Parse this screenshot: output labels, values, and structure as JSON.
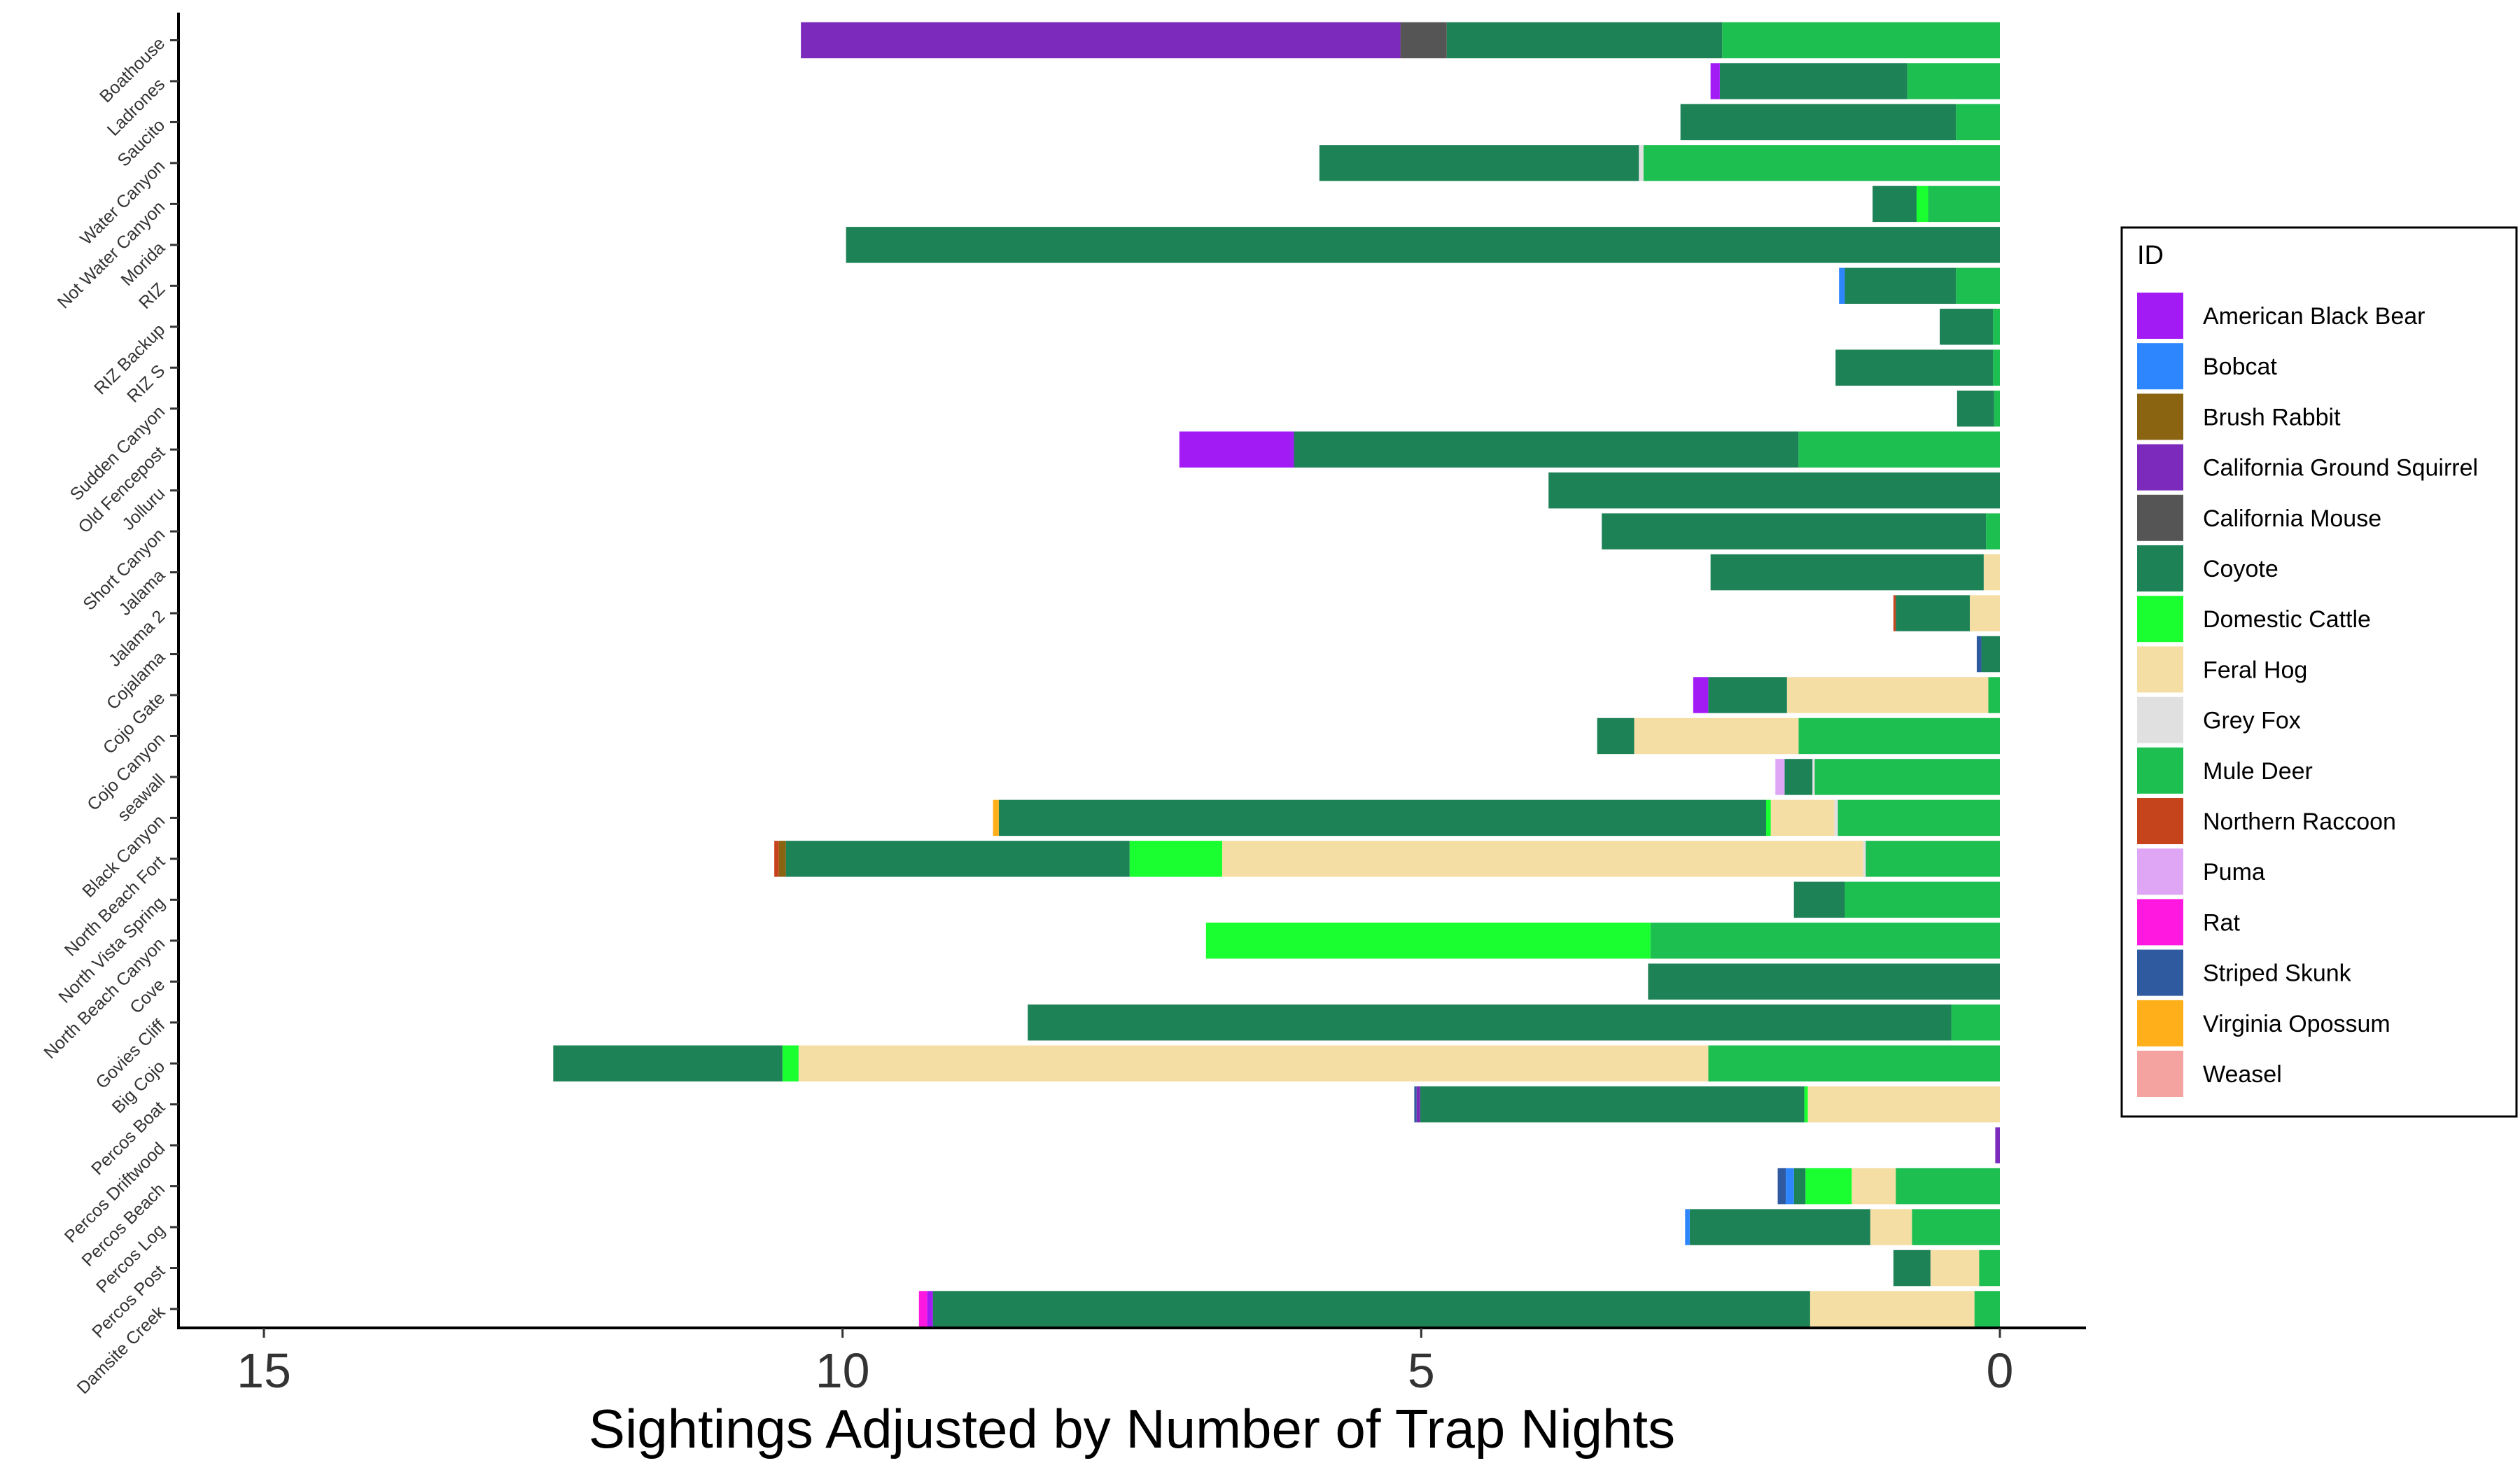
{
  "chart_data": {
    "type": "bar",
    "orientation": "horizontal-stacked",
    "x_reversed": true,
    "xlabel": "Sightings Adjusted by Number of Trap Nights",
    "ylabel": "",
    "xlim": [
      0,
      16.4
    ],
    "xticks": [
      15,
      10,
      5,
      0
    ],
    "grid": false,
    "legend_position": "right",
    "legend_title": "ID",
    "categories": [
      "Boathouse",
      "Ladrones",
      "Saucito",
      "Water Canyon",
      "Not Water Canyon",
      "Morida",
      "RIZ",
      "RIZ Backup",
      "RIZ S",
      "Sudden Canyon",
      "Old Fencepost",
      "Jolluru",
      "Short Canyon",
      "Jalama",
      "Jalama 2",
      "Cojalama",
      "Cojo Gate",
      "Cojo Canyon",
      "seawall",
      "Black Canyon",
      "North Beach Fort",
      "North Vista Spring",
      "North Beach Canyon",
      "Cove",
      "Govies Cliff",
      "Big Cojo",
      "Percos Boat",
      "Percos Driftwood",
      "Percos Beach",
      "Percos Log",
      "Percos Post",
      "Damsite Creek"
    ],
    "series": [
      {
        "name": "Mule Deer",
        "color": "#1DBF50",
        "values": [
          2.4,
          0.8,
          0.38,
          3.08,
          0.62,
          0,
          0.38,
          0.06,
          0.06,
          0.05,
          1.74,
          0,
          0.12,
          0,
          0,
          0,
          0.1,
          1.74,
          1.6,
          1.4,
          1.16,
          1.34,
          3.02,
          0,
          0.42,
          2.52,
          0,
          0,
          0.9,
          0.76,
          0.18,
          0.22
        ]
      },
      {
        "name": "Grey Fox",
        "color": "#E0E0E0",
        "values": [
          0,
          0,
          0,
          0.04,
          0,
          0,
          0,
          0,
          0,
          0,
          0,
          0,
          0,
          0,
          0,
          0,
          0,
          0,
          0.02,
          0.03,
          0.02,
          0,
          0,
          0,
          0,
          0,
          0,
          0,
          0,
          0,
          0,
          0
        ]
      },
      {
        "name": "Feral Hog",
        "color": "#F5DEA3",
        "values": [
          0,
          0,
          0,
          0,
          0,
          0,
          0,
          0,
          0,
          0,
          0,
          0,
          0,
          0.14,
          0.26,
          0,
          1.74,
          1.42,
          0,
          0.55,
          5.54,
          0,
          0,
          0,
          0,
          7.86,
          1.66,
          0,
          0.38,
          0.36,
          0.42,
          1.42
        ]
      },
      {
        "name": "Domestic Cattle",
        "color": "#19FF30",
        "values": [
          0,
          0,
          0,
          0,
          0.1,
          0,
          0,
          0,
          0,
          0,
          0,
          0,
          0,
          0,
          0,
          0,
          0,
          0,
          0,
          0.04,
          0.8,
          0,
          3.84,
          0,
          0,
          0.14,
          0.03,
          0,
          0.4,
          0,
          0,
          0
        ]
      },
      {
        "name": "Coyote",
        "color": "#1E8257",
        "values": [
          2.38,
          1.62,
          2.38,
          2.76,
          0.38,
          9.97,
          0.96,
          0.46,
          1.36,
          0.32,
          4.36,
          3.9,
          3.32,
          2.36,
          0.64,
          0.16,
          0.68,
          0.32,
          0.24,
          6.63,
          2.97,
          0.44,
          0,
          3.04,
          7.98,
          1.98,
          3.32,
          0,
          0.1,
          1.56,
          0.32,
          7.58
        ]
      },
      {
        "name": "California Mouse",
        "color": "#555555",
        "values": [
          0.4,
          0,
          0,
          0,
          0,
          0,
          0,
          0,
          0,
          0,
          0,
          0,
          0,
          0,
          0,
          0,
          0,
          0,
          0,
          0,
          0,
          0,
          0,
          0,
          0,
          0,
          0,
          0,
          0,
          0,
          0,
          0
        ]
      },
      {
        "name": "California Ground Squirrel",
        "color": "#7B2ABB",
        "values": [
          5.18,
          0,
          0,
          0,
          0,
          0,
          0,
          0,
          0,
          0,
          0,
          0,
          0,
          0,
          0,
          0,
          0,
          0,
          0,
          0,
          0,
          0,
          0,
          0,
          0,
          0,
          0.03,
          0.04,
          0,
          0,
          0,
          0
        ]
      },
      {
        "name": "American Black Bear",
        "color": "#A21BF5",
        "values": [
          0,
          0.08,
          0,
          0,
          0,
          0,
          0,
          0,
          0,
          0,
          0.99,
          0,
          0,
          0,
          0,
          0,
          0.13,
          0,
          0,
          0,
          0,
          0,
          0,
          0,
          0,
          0,
          0,
          0,
          0,
          0,
          0,
          0.05
        ]
      },
      {
        "name": "Bobcat",
        "color": "#2E86FF",
        "values": [
          0,
          0,
          0,
          0,
          0,
          0,
          0.05,
          0,
          0,
          0,
          0,
          0,
          0,
          0,
          0,
          0,
          0,
          0,
          0,
          0,
          0,
          0,
          0,
          0,
          0,
          0,
          0,
          0,
          0.07,
          0.04,
          0,
          0
        ]
      },
      {
        "name": "Brush Rabbit",
        "color": "#8A6410",
        "values": [
          0,
          0,
          0,
          0,
          0,
          0,
          0,
          0,
          0,
          0,
          0,
          0,
          0,
          0,
          0,
          0,
          0,
          0,
          0,
          0,
          0.06,
          0,
          0,
          0,
          0,
          0,
          0,
          0,
          0,
          0,
          0,
          0
        ]
      },
      {
        "name": "Northern Raccoon",
        "color": "#C6441C",
        "values": [
          0,
          0,
          0,
          0,
          0,
          0,
          0,
          0,
          0,
          0,
          0,
          0,
          0,
          0,
          0.02,
          0,
          0,
          0,
          0,
          0,
          0.04,
          0,
          0,
          0,
          0,
          0,
          0,
          0,
          0,
          0,
          0,
          0
        ]
      },
      {
        "name": "Puma",
        "color": "#DEA6F5",
        "values": [
          0,
          0,
          0,
          0,
          0,
          0,
          0,
          0,
          0,
          0,
          0,
          0,
          0,
          0,
          0,
          0,
          0,
          0,
          0.08,
          0,
          0,
          0,
          0,
          0,
          0,
          0,
          0,
          0,
          0,
          0,
          0,
          0
        ]
      },
      {
        "name": "Rat",
        "color": "#FF19E0",
        "values": [
          0,
          0,
          0,
          0,
          0,
          0,
          0,
          0,
          0,
          0,
          0,
          0,
          0,
          0,
          0,
          0,
          0,
          0,
          0,
          0,
          0,
          0,
          0,
          0,
          0,
          0,
          0,
          0,
          0,
          0,
          0,
          0.07
        ]
      },
      {
        "name": "Striped Skunk",
        "color": "#2F5AA0",
        "values": [
          0,
          0,
          0,
          0,
          0,
          0,
          0,
          0,
          0,
          0,
          0,
          0,
          0,
          0,
          0,
          0.04,
          0,
          0,
          0,
          0,
          0,
          0,
          0,
          0,
          0,
          0,
          0.02,
          0,
          0.07,
          0,
          0,
          0
        ]
      },
      {
        "name": "Virginia Opossum",
        "color": "#FFAF19",
        "values": [
          0,
          0,
          0,
          0,
          0,
          0,
          0,
          0,
          0,
          0,
          0,
          0,
          0,
          0,
          0,
          0,
          0,
          0,
          0,
          0.05,
          0,
          0,
          0,
          0,
          0,
          0,
          0,
          0,
          0,
          0,
          0,
          0
        ]
      },
      {
        "name": "Weasel",
        "color": "#F5A3A0",
        "values": [
          0,
          0,
          0,
          0,
          0,
          0,
          0,
          0,
          0,
          0,
          0,
          0,
          0,
          0,
          0,
          0,
          0,
          0,
          0,
          0,
          0,
          0,
          0,
          0,
          0,
          0,
          0,
          0,
          0,
          0,
          0,
          0
        ]
      }
    ],
    "legend_order": [
      "American Black Bear",
      "Bobcat",
      "Brush Rabbit",
      "California Ground Squirrel",
      "California Mouse",
      "Coyote",
      "Domestic Cattle",
      "Feral Hog",
      "Grey Fox",
      "Mule Deer",
      "Northern Raccoon",
      "Puma",
      "Rat",
      "Striped Skunk",
      "Virginia Opossum",
      "Weasel"
    ]
  }
}
